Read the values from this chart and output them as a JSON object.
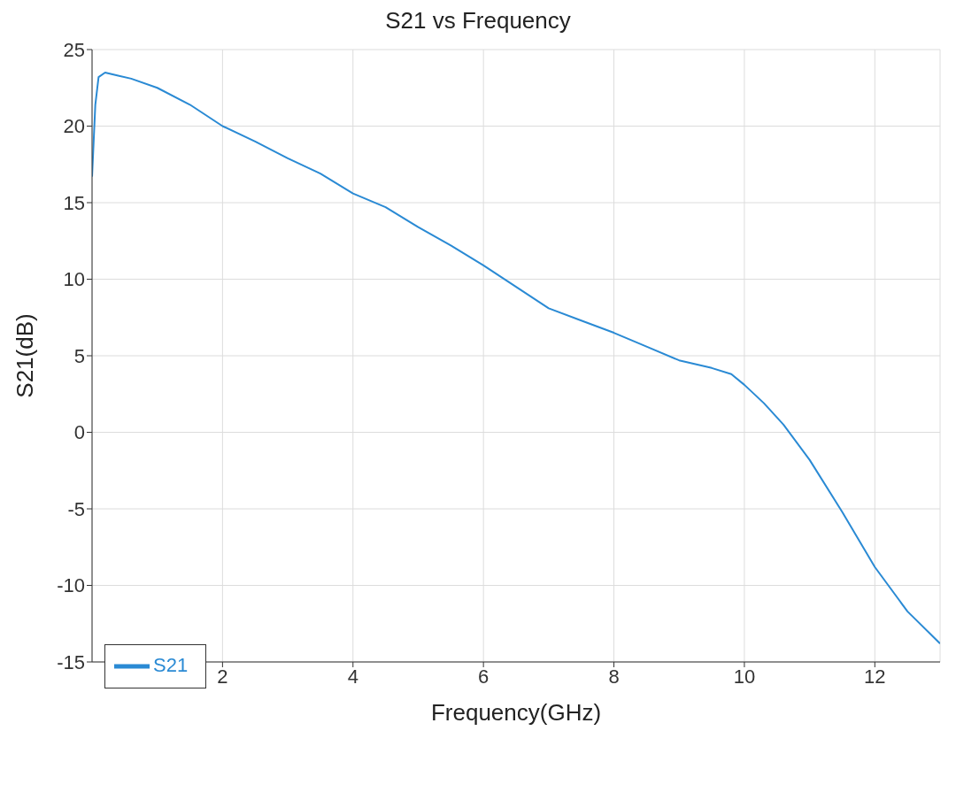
{
  "chart_data": {
    "type": "line",
    "title": "S21 vs Frequency",
    "xlabel": "Frequency(GHz)",
    "ylabel": "S21(dB)",
    "series": [
      {
        "name": "S21",
        "color": "#2a8ad4",
        "x": [
          0,
          0.05,
          0.1,
          0.2,
          0.3,
          0.4,
          0.6,
          1,
          1.5,
          2,
          2.5,
          3,
          3.5,
          4,
          4.5,
          5,
          5.5,
          6,
          6.5,
          7,
          7.5,
          8,
          8.5,
          9,
          9.5,
          9.8,
          10,
          10.3,
          10.6,
          11,
          11.5,
          12,
          12.5,
          13
        ],
        "values": [
          16.7,
          21.4,
          23.2,
          23.5,
          23.4,
          23.3,
          23.1,
          22.5,
          21.4,
          20.0,
          19.0,
          17.9,
          16.9,
          15.6,
          14.7,
          13.4,
          12.2,
          10.9,
          9.5,
          8.1,
          7.3,
          6.5,
          5.6,
          4.7,
          4.2,
          3.8,
          3.1,
          1.9,
          0.5,
          -1.8,
          -5.2,
          -8.8,
          -11.7,
          -13.8
        ]
      }
    ],
    "xlim": [
      0,
      13
    ],
    "xticks": [
      2,
      4,
      6,
      8,
      10,
      12
    ],
    "ylim": [
      -15,
      25
    ],
    "yticks": [
      -15,
      -10,
      -5,
      0,
      5,
      10,
      15,
      20,
      25
    ],
    "grid": true,
    "legend": "bottom left",
    "marker": "none",
    "line_style": "solid"
  }
}
